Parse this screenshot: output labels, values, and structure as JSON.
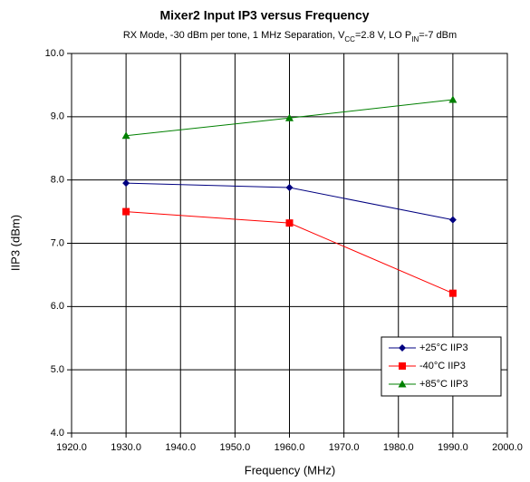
{
  "chart_data": {
    "type": "line",
    "title": "Mixer2 Input IP3 versus Frequency",
    "subtitle_parts": [
      "RX Mode, -30 dBm per tone, 1 MHz Separation, V",
      "CC",
      "=2.8 V, LO P",
      "IN",
      "=-7 dBm"
    ],
    "x_label": "Frequency (MHz)",
    "y_label": "IIP3 (dBm)",
    "x": [
      1930,
      1960,
      1990
    ],
    "series": [
      {
        "name": "+25°C IIP3",
        "color": "#000080",
        "marker": "diamond",
        "values": [
          7.95,
          7.88,
          7.37
        ]
      },
      {
        "name": "-40°C IIP3",
        "color": "#ff0000",
        "marker": "square",
        "values": [
          7.5,
          7.32,
          6.21
        ]
      },
      {
        "name": "+85°C IIP3",
        "color": "#008000",
        "marker": "triangle",
        "values": [
          8.7,
          8.98,
          9.27
        ]
      }
    ],
    "xlim": [
      1920,
      2000
    ],
    "xticks": [
      {
        "value": 1920,
        "label": "1920.0"
      },
      {
        "value": 1930,
        "label": "1930.0"
      },
      {
        "value": 1940,
        "label": "1940.0"
      },
      {
        "value": 1950,
        "label": "1950.0"
      },
      {
        "value": 1960,
        "label": "1960.0"
      },
      {
        "value": 1970,
        "label": "1970.0"
      },
      {
        "value": 1980,
        "label": "1980.0"
      },
      {
        "value": 1990,
        "label": "1990.0"
      },
      {
        "value": 2000,
        "label": "2000.0"
      }
    ],
    "ylim": [
      4,
      10
    ],
    "yticks": [
      {
        "value": 4,
        "label": "4.0"
      },
      {
        "value": 5,
        "label": "5.0"
      },
      {
        "value": 6,
        "label": "6.0"
      },
      {
        "value": 7,
        "label": "7.0"
      },
      {
        "value": 8,
        "label": "8.0"
      },
      {
        "value": 9,
        "label": "9.0"
      },
      {
        "value": 10,
        "label": "10.0"
      }
    ],
    "grid": true,
    "legend": "lower right"
  }
}
